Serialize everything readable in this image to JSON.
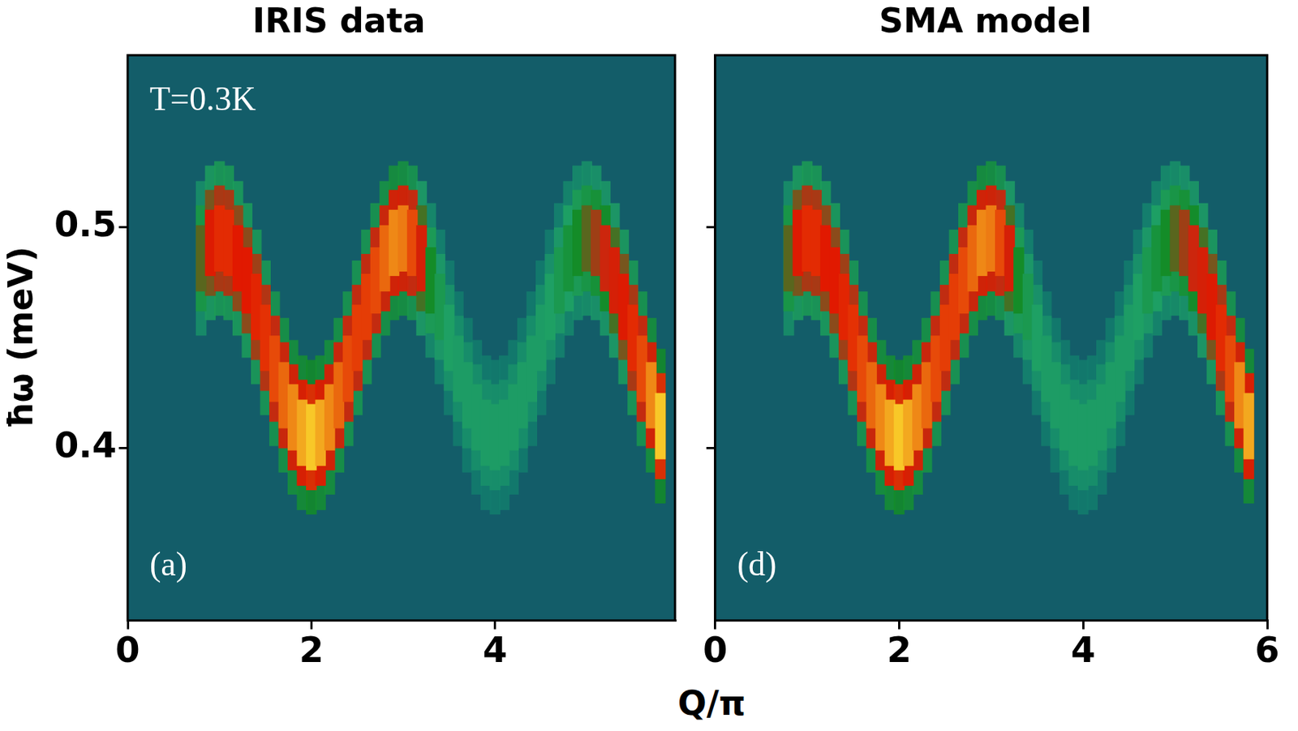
{
  "xlabel": "Q/π",
  "chart_data": [
    {
      "type": "heatmap",
      "title": "IRIS data",
      "ylabel": "ħω (meV)",
      "annotation": "T=0.3K",
      "panel_label": "(a)",
      "xlim": [
        0,
        5.96
      ],
      "xticks": [
        0,
        2,
        4
      ],
      "ylim": [
        0.322,
        0.578
      ],
      "yticks": [
        0.4,
        0.5
      ],
      "grid": false,
      "dispersion": {
        "Q": [
          0.8,
          0.9,
          1.0,
          1.1,
          1.2,
          1.3,
          1.4,
          1.5,
          1.6,
          1.7,
          1.8,
          1.9,
          2.0,
          2.1,
          2.2,
          2.3,
          2.4,
          2.5,
          2.6,
          2.7,
          2.8,
          2.9,
          3.0,
          3.1,
          3.2,
          3.3,
          3.4,
          3.5,
          3.6,
          3.7,
          3.8,
          3.9,
          4.0,
          4.1,
          4.2,
          4.3,
          4.4,
          4.5,
          4.6,
          4.7,
          4.8,
          4.9,
          5.0,
          5.1,
          5.2,
          5.3,
          5.4,
          5.5,
          5.6,
          5.7,
          5.8
        ],
        "energy": [
          0.486,
          0.493,
          0.495,
          0.493,
          0.486,
          0.476,
          0.464,
          0.45,
          0.436,
          0.424,
          0.414,
          0.407,
          0.405,
          0.407,
          0.414,
          0.424,
          0.436,
          0.45,
          0.464,
          0.476,
          0.486,
          0.493,
          0.495,
          0.493,
          0.486,
          0.476,
          0.464,
          0.45,
          0.436,
          0.424,
          0.414,
          0.407,
          0.405,
          0.407,
          0.414,
          0.424,
          0.436,
          0.45,
          0.464,
          0.476,
          0.486,
          0.493,
          0.495,
          0.493,
          0.486,
          0.476,
          0.464,
          0.45,
          0.436,
          0.424,
          0.41
        ],
        "intensity": [
          0.5,
          0.7,
          0.75,
          0.75,
          0.72,
          0.72,
          0.74,
          0.76,
          0.8,
          0.85,
          0.9,
          0.95,
          1.0,
          0.95,
          0.9,
          0.85,
          0.8,
          0.78,
          0.78,
          0.8,
          0.85,
          0.9,
          0.88,
          0.8,
          0.65,
          0.45,
          0.35,
          0.3,
          0.28,
          0.28,
          0.28,
          0.28,
          0.28,
          0.28,
          0.28,
          0.28,
          0.28,
          0.28,
          0.3,
          0.35,
          0.4,
          0.45,
          0.5,
          0.55,
          0.6,
          0.65,
          0.7,
          0.75,
          0.8,
          0.9,
          1.0
        ]
      }
    },
    {
      "type": "heatmap",
      "title": "SMA model",
      "panel_label": "(d)",
      "xlim": [
        0,
        6
      ],
      "xticks": [
        0,
        2,
        4,
        6
      ],
      "ylim": [
        0.322,
        0.578
      ],
      "yticks": [
        0.4,
        0.5
      ],
      "grid": false,
      "tick_labels": "x",
      "dispersion": {
        "Q": [
          0.8,
          0.9,
          1.0,
          1.1,
          1.2,
          1.3,
          1.4,
          1.5,
          1.6,
          1.7,
          1.8,
          1.9,
          2.0,
          2.1,
          2.2,
          2.3,
          2.4,
          2.5,
          2.6,
          2.7,
          2.8,
          2.9,
          3.0,
          3.1,
          3.2,
          3.3,
          3.4,
          3.5,
          3.6,
          3.7,
          3.8,
          3.9,
          4.0,
          4.1,
          4.2,
          4.3,
          4.4,
          4.5,
          4.6,
          4.7,
          4.8,
          4.9,
          5.0,
          5.1,
          5.2,
          5.3,
          5.4,
          5.5,
          5.6,
          5.7,
          5.8
        ],
        "energy": [
          0.486,
          0.493,
          0.495,
          0.493,
          0.486,
          0.476,
          0.464,
          0.45,
          0.436,
          0.424,
          0.414,
          0.407,
          0.405,
          0.407,
          0.414,
          0.424,
          0.436,
          0.45,
          0.464,
          0.476,
          0.486,
          0.493,
          0.495,
          0.493,
          0.486,
          0.476,
          0.464,
          0.45,
          0.436,
          0.424,
          0.414,
          0.407,
          0.405,
          0.407,
          0.414,
          0.424,
          0.436,
          0.45,
          0.464,
          0.476,
          0.486,
          0.493,
          0.495,
          0.493,
          0.486,
          0.476,
          0.464,
          0.45,
          0.436,
          0.424,
          0.41
        ],
        "intensity": [
          0.5,
          0.7,
          0.75,
          0.75,
          0.72,
          0.72,
          0.74,
          0.76,
          0.8,
          0.85,
          0.9,
          0.95,
          1.0,
          0.95,
          0.9,
          0.85,
          0.8,
          0.78,
          0.78,
          0.8,
          0.85,
          0.9,
          0.88,
          0.8,
          0.65,
          0.45,
          0.35,
          0.3,
          0.28,
          0.28,
          0.28,
          0.28,
          0.28,
          0.28,
          0.28,
          0.28,
          0.28,
          0.28,
          0.3,
          0.35,
          0.4,
          0.45,
          0.5,
          0.55,
          0.6,
          0.65,
          0.7,
          0.75,
          0.8,
          0.9,
          0.95
        ]
      }
    }
  ]
}
